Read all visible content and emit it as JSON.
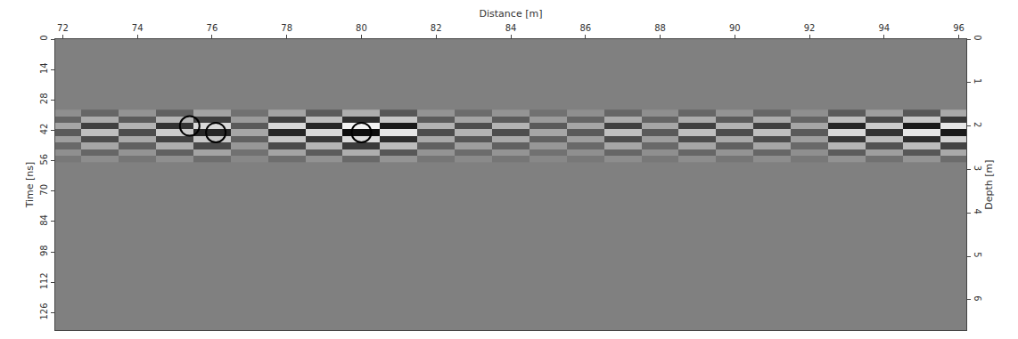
{
  "chart_data": {
    "type": "heatmap",
    "x_label": "Distance [m]",
    "y_label": "Time [ns]",
    "y2_label": "Depth [m]",
    "xlim": [
      71.8,
      96.2
    ],
    "xticks": [
      72,
      74,
      76,
      78,
      80,
      82,
      84,
      86,
      88,
      90,
      92,
      94,
      96
    ],
    "ylim": [
      0,
      134
    ],
    "yticks": [
      0,
      14,
      28,
      42,
      56,
      70,
      84,
      98,
      112,
      126
    ],
    "y2lim": [
      0,
      6.7
    ],
    "y2ticks": [
      0,
      1,
      2,
      3,
      4,
      5,
      6
    ],
    "zlim": [
      -1,
      1
    ],
    "x": [
      72,
      73,
      74,
      75,
      76,
      77,
      78,
      79,
      80,
      81,
      82,
      83,
      84,
      85,
      86,
      87,
      88,
      89,
      90,
      91,
      92,
      93,
      94,
      95,
      96
    ],
    "y": [
      34,
      37,
      40,
      43,
      46,
      49,
      52,
      55
    ],
    "z": [
      [
        0.12,
        -0.2,
        0.16,
        -0.24,
        0.28,
        -0.12,
        0.28,
        -0.28,
        0.36,
        -0.32,
        0.16,
        -0.16,
        0.16,
        -0.12,
        0.12,
        -0.2,
        0.12,
        -0.2,
        0.16,
        -0.2,
        0.12,
        -0.28,
        0.24,
        -0.32,
        0.32
      ],
      [
        -0.21,
        0.35,
        -0.28,
        0.42,
        -0.49,
        0.21,
        -0.49,
        0.49,
        -0.63,
        0.56,
        -0.28,
        0.28,
        -0.28,
        0.21,
        -0.21,
        0.35,
        -0.21,
        0.35,
        -0.28,
        0.35,
        -0.21,
        0.49,
        -0.42,
        0.56,
        -0.56
      ],
      [
        0.3,
        -0.5,
        0.4,
        -0.6,
        0.7,
        -0.3,
        0.7,
        -0.7,
        0.9,
        -0.8,
        0.4,
        -0.4,
        0.4,
        -0.3,
        0.3,
        -0.5,
        0.3,
        -0.5,
        0.4,
        -0.5,
        0.3,
        -0.7,
        0.6,
        -0.8,
        0.8
      ],
      [
        -0.3,
        0.5,
        -0.4,
        0.6,
        -0.7,
        0.3,
        -0.7,
        0.7,
        -0.9,
        0.8,
        -0.4,
        0.4,
        -0.4,
        0.3,
        -0.3,
        0.5,
        -0.3,
        0.5,
        -0.4,
        0.5,
        -0.3,
        0.7,
        -0.6,
        0.8,
        -0.8
      ],
      [
        0.24,
        -0.4,
        0.32,
        -0.48,
        0.56,
        -0.24,
        0.56,
        -0.56,
        0.72,
        -0.64,
        0.32,
        -0.32,
        0.32,
        -0.24,
        0.24,
        -0.4,
        0.24,
        -0.4,
        0.32,
        -0.4,
        0.24,
        -0.56,
        0.48,
        -0.64,
        0.64
      ],
      [
        -0.18,
        0.3,
        -0.24,
        0.36,
        -0.42,
        0.18,
        -0.42,
        0.42,
        -0.54,
        0.48,
        -0.24,
        0.24,
        -0.24,
        0.18,
        -0.18,
        0.3,
        -0.18,
        0.3,
        -0.24,
        0.3,
        -0.18,
        0.42,
        -0.36,
        0.48,
        -0.48
      ],
      [
        0.12,
        -0.2,
        0.16,
        -0.24,
        0.28,
        -0.12,
        0.28,
        -0.28,
        0.36,
        -0.32,
        0.16,
        -0.16,
        0.16,
        -0.12,
        0.12,
        -0.2,
        0.12,
        -0.2,
        0.16,
        -0.2,
        0.12,
        -0.28,
        0.24,
        -0.32,
        0.32
      ],
      [
        -0.06,
        0.1,
        -0.08,
        0.12,
        -0.14,
        0.06,
        -0.14,
        0.14,
        -0.18,
        0.16,
        -0.08,
        0.08,
        -0.08,
        0.06,
        -0.06,
        0.1,
        -0.06,
        0.1,
        -0.08,
        0.1,
        -0.06,
        0.14,
        -0.12,
        0.16,
        -0.16
      ]
    ],
    "circles": {
      "x": [
        75.4,
        76.1,
        80.0
      ],
      "y": [
        40,
        43,
        43
      ]
    }
  }
}
